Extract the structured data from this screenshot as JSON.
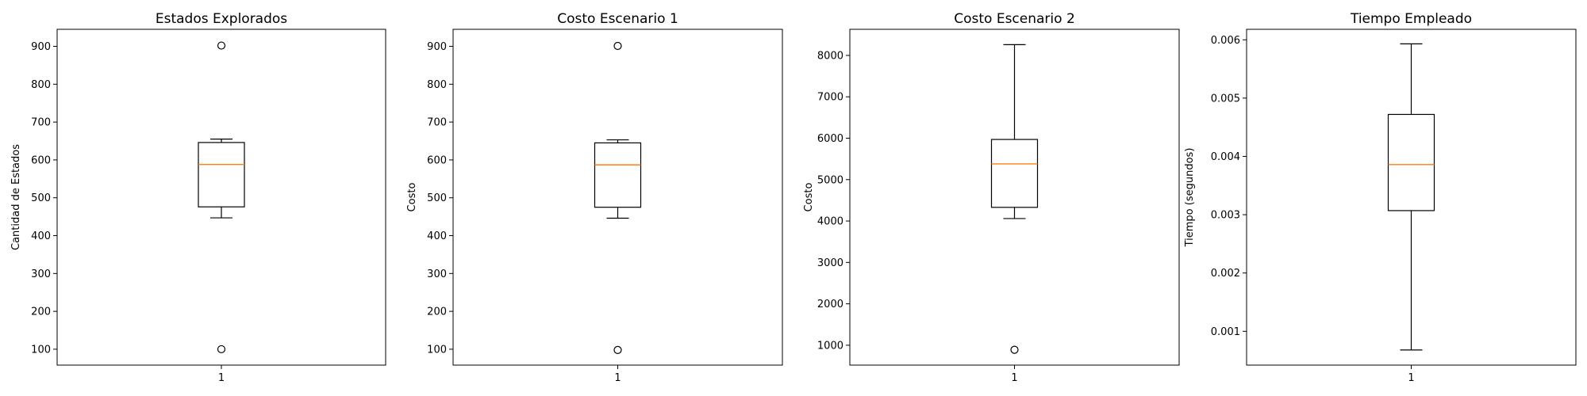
{
  "chart_data": [
    {
      "type": "box",
      "title": "Estados Explorados",
      "xlabel": "",
      "ylabel": "Cantidad de Estados",
      "categories": [
        "1"
      ],
      "ylim": [
        58,
        945
      ],
      "yticks": [
        100,
        200,
        300,
        400,
        500,
        600,
        700,
        800,
        900
      ],
      "tick_format": "int",
      "boxes": [
        {
          "whisker_low": 447,
          "q1": 476,
          "median": 588,
          "q3": 646,
          "whisker_high": 655,
          "outliers": [
            100,
            902
          ]
        }
      ],
      "grid": false,
      "median_color": "#ff7f0e"
    },
    {
      "type": "box",
      "title": "Costo Escenario 1",
      "xlabel": "",
      "ylabel": "Costo",
      "categories": [
        "1"
      ],
      "ylim": [
        58,
        945
      ],
      "yticks": [
        100,
        200,
        300,
        400,
        500,
        600,
        700,
        800,
        900
      ],
      "tick_format": "int",
      "boxes": [
        {
          "whisker_low": 446,
          "q1": 475,
          "median": 587,
          "q3": 645,
          "whisker_high": 653,
          "outliers": [
            98,
            901
          ]
        }
      ],
      "grid": false,
      "median_color": "#ff7f0e"
    },
    {
      "type": "box",
      "title": "Costo Escenario 2",
      "xlabel": "",
      "ylabel": "Costo",
      "categories": [
        "1"
      ],
      "ylim": [
        520,
        8630
      ],
      "yticks": [
        1000,
        2000,
        3000,
        4000,
        5000,
        6000,
        7000,
        8000
      ],
      "tick_format": "int",
      "boxes": [
        {
          "whisker_low": 4060,
          "q1": 4330,
          "median": 5380,
          "q3": 5970,
          "whisker_high": 8260,
          "outliers": [
            890
          ]
        }
      ],
      "grid": false,
      "median_color": "#ff7f0e"
    },
    {
      "type": "box",
      "title": "Tiempo Empleado",
      "xlabel": "",
      "ylabel": "Tiempo (segundos)",
      "categories": [
        "1"
      ],
      "ylim": [
        0.00042,
        0.00618
      ],
      "yticks": [
        0.001,
        0.002,
        0.003,
        0.004,
        0.005,
        0.006
      ],
      "tick_format": "3dp",
      "boxes": [
        {
          "whisker_low": 0.00068,
          "q1": 0.00307,
          "median": 0.00386,
          "q3": 0.00472,
          "whisker_high": 0.00593,
          "outliers": []
        }
      ],
      "grid": false,
      "median_color": "#ff7f0e"
    }
  ]
}
